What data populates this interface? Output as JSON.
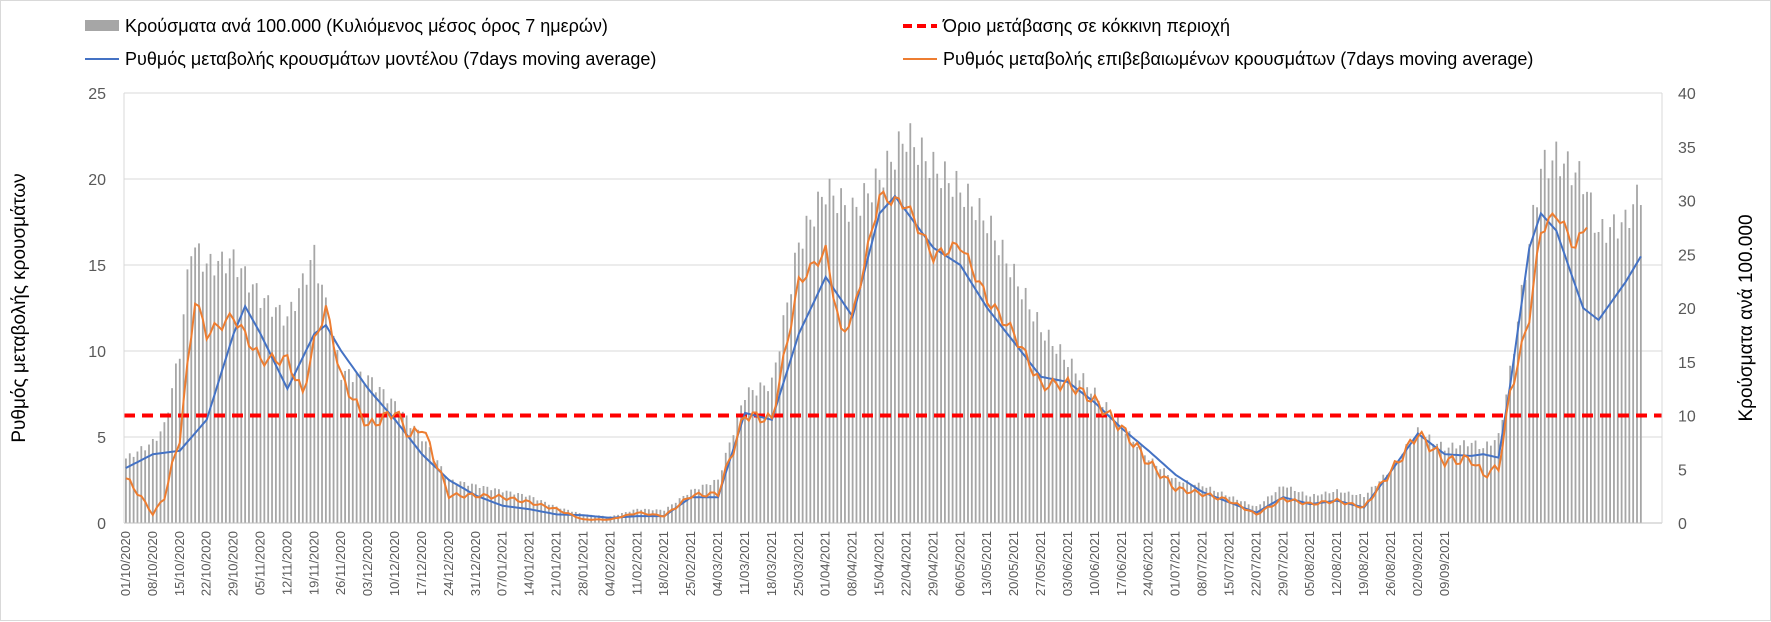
{
  "chart_data": {
    "type": "bar+line",
    "title": "",
    "left_axis": {
      "label": "Ρυθμός μεταβολής κρουσμάτων",
      "min": 0,
      "max": 25,
      "ticks": [
        "0",
        "5",
        "10",
        "15",
        "20",
        "25"
      ]
    },
    "right_axis": {
      "label": "Κρούσματα ανά 100.000",
      "min": 0,
      "max": 40,
      "ticks": [
        "0",
        "5",
        "10",
        "15",
        "20",
        "25",
        "30",
        "35",
        "40"
      ]
    },
    "x_tick_labels": [
      "01/10/2020",
      "08/10/2020",
      "15/10/2020",
      "22/10/2020",
      "29/10/2020",
      "05/11/2020",
      "12/11/2020",
      "19/11/2020",
      "26/11/2020",
      "03/12/2020",
      "10/12/2020",
      "17/12/2020",
      "24/12/2020",
      "31/12/2020",
      "07/01/2021",
      "14/01/2021",
      "21/01/2021",
      "28/01/2021",
      "04/02/2021",
      "11/02/2021",
      "18/02/2021",
      "25/02/2021",
      "04/03/2021",
      "11/03/2021",
      "18/03/2021",
      "25/03/2021",
      "01/04/2021",
      "08/04/2021",
      "15/04/2021",
      "22/04/2021",
      "29/04/2021",
      "06/05/2021",
      "13/05/2021",
      "20/05/2021",
      "27/05/2021",
      "03/06/2021",
      "10/06/2021",
      "17/06/2021",
      "24/06/2021",
      "01/07/2021",
      "08/07/2021",
      "15/07/2021",
      "22/07/2021",
      "29/07/2021",
      "05/08/2021",
      "12/08/2021",
      "19/08/2021",
      "26/08/2021",
      "02/09/2021",
      "09/09/2021"
    ],
    "legend": [
      {
        "label": "Κρούσματα ανά 100.000 (Κυλιόμενος μέσος όρος 7 ημερών)",
        "kind": "bar",
        "color": "#a6a6a6"
      },
      {
        "label": "Όριο μετάβασης σε κόκκινη περιοχή",
        "kind": "dashed",
        "color": "#ff0000"
      },
      {
        "label": "Ρυθμός μεταβολής κρουσμάτων μοντέλου (7days moving average)",
        "kind": "line",
        "color": "#4472c4"
      },
      {
        "label": "Ρυθμός μεταβολής επιβεβαιωμένων κρουσμάτων (7days moving average)",
        "kind": "line",
        "color": "#ed7d31"
      }
    ],
    "threshold": {
      "axis": "left",
      "value": 6.25
    },
    "series": [
      {
        "name": "Κρούσματα ανά 100.000 (Κυλιόμενος μέσος όρος 7 ημερών)",
        "kind": "bar",
        "axis": "right",
        "color": "#a6a6a6",
        "keyframes": [
          [
            0,
            6
          ],
          [
            7,
            7.5
          ],
          [
            10,
            9
          ],
          [
            14,
            16
          ],
          [
            17,
            26
          ],
          [
            21,
            24
          ],
          [
            28,
            24.5
          ],
          [
            35,
            21
          ],
          [
            42,
            19
          ],
          [
            49,
            25
          ],
          [
            56,
            14
          ],
          [
            63,
            13.5
          ],
          [
            70,
            11
          ],
          [
            77,
            8
          ],
          [
            84,
            4
          ],
          [
            91,
            3.5
          ],
          [
            98,
            3
          ],
          [
            105,
            2.5
          ],
          [
            112,
            1.5
          ],
          [
            119,
            0.8
          ],
          [
            126,
            0.6
          ],
          [
            133,
            1.3
          ],
          [
            140,
            1.2
          ],
          [
            147,
            3
          ],
          [
            154,
            4
          ],
          [
            161,
            12
          ],
          [
            168,
            13
          ],
          [
            175,
            26
          ],
          [
            182,
            31
          ],
          [
            189,
            29
          ],
          [
            196,
            32
          ],
          [
            203,
            36
          ],
          [
            210,
            33
          ],
          [
            217,
            31
          ],
          [
            224,
            28
          ],
          [
            231,
            23
          ],
          [
            238,
            18
          ],
          [
            245,
            15
          ],
          [
            252,
            12
          ],
          [
            259,
            9
          ],
          [
            266,
            6
          ],
          [
            273,
            4
          ],
          [
            280,
            3.5
          ],
          [
            287,
            2.5
          ],
          [
            294,
            1.5
          ],
          [
            301,
            3.5
          ],
          [
            308,
            2.5
          ],
          [
            315,
            3
          ],
          [
            322,
            2.5
          ],
          [
            329,
            5
          ],
          [
            336,
            8.5
          ],
          [
            343,
            7
          ],
          [
            350,
            7.5
          ],
          [
            353,
            7
          ],
          [
            357,
            8
          ],
          [
            360,
            14
          ],
          [
            365,
            26
          ],
          [
            368,
            33
          ],
          [
            372,
            34
          ],
          [
            379,
            32
          ],
          [
            383,
            27
          ],
          [
            390,
            28
          ],
          [
            394,
            31
          ]
        ]
      },
      {
        "name": "Ρυθμός μεταβολής κρουσμάτων μοντέλου (7days moving average)",
        "kind": "line",
        "axis": "left",
        "color": "#4472c4",
        "keyframes": [
          [
            0,
            3.2
          ],
          [
            7,
            4
          ],
          [
            14,
            4.2
          ],
          [
            21,
            6
          ],
          [
            28,
            11
          ],
          [
            31,
            12.6
          ],
          [
            35,
            11
          ],
          [
            42,
            7.8
          ],
          [
            49,
            11
          ],
          [
            52,
            11.5
          ],
          [
            56,
            10
          ],
          [
            63,
            7.8
          ],
          [
            70,
            6
          ],
          [
            77,
            4
          ],
          [
            84,
            2.5
          ],
          [
            91,
            1.6
          ],
          [
            98,
            1
          ],
          [
            105,
            0.8
          ],
          [
            112,
            0.5
          ],
          [
            119,
            0.45
          ],
          [
            126,
            0.3
          ],
          [
            133,
            0.4
          ],
          [
            140,
            0.4
          ],
          [
            147,
            1.5
          ],
          [
            154,
            1.5
          ],
          [
            161,
            6.4
          ],
          [
            168,
            6
          ],
          [
            175,
            11
          ],
          [
            182,
            14.3
          ],
          [
            189,
            12
          ],
          [
            196,
            18
          ],
          [
            200,
            19
          ],
          [
            210,
            16
          ],
          [
            217,
            15
          ],
          [
            224,
            12.5
          ],
          [
            231,
            10.5
          ],
          [
            238,
            8.5
          ],
          [
            245,
            8.2
          ],
          [
            252,
            7
          ],
          [
            259,
            5.5
          ],
          [
            266,
            4.2
          ],
          [
            273,
            2.8
          ],
          [
            280,
            1.8
          ],
          [
            287,
            1.2
          ],
          [
            294,
            0.6
          ],
          [
            301,
            1.5
          ],
          [
            308,
            1.1
          ],
          [
            315,
            1.3
          ],
          [
            322,
            0.9
          ],
          [
            329,
            3
          ],
          [
            336,
            5.2
          ],
          [
            343,
            4
          ],
          [
            350,
            3.9
          ],
          [
            353,
            4
          ],
          [
            357,
            3.8
          ],
          [
            360,
            8
          ],
          [
            365,
            16
          ],
          [
            368,
            18
          ],
          [
            372,
            17
          ],
          [
            379,
            12.5
          ],
          [
            383,
            11.8
          ],
          [
            390,
            14
          ],
          [
            394,
            15.5
          ]
        ]
      },
      {
        "name": "Ρυθμός μεταβολής επιβεβαιωμένων κρουσμάτων (7days moving average)",
        "kind": "line",
        "axis": "left",
        "color": "#ed7d31",
        "keyframes": [
          [
            0,
            2.6
          ],
          [
            4,
            1.5
          ],
          [
            7,
            0.5
          ],
          [
            10,
            1.5
          ],
          [
            14,
            5
          ],
          [
            18,
            13
          ],
          [
            21,
            11
          ],
          [
            28,
            12
          ],
          [
            35,
            9.5
          ],
          [
            42,
            9.5
          ],
          [
            46,
            7.5
          ],
          [
            49,
            10.5
          ],
          [
            52,
            12.5
          ],
          [
            56,
            8.5
          ],
          [
            63,
            5.6
          ],
          [
            70,
            6.5
          ],
          [
            74,
            5
          ],
          [
            77,
            5.6
          ],
          [
            84,
            1.6
          ],
          [
            91,
            1.6
          ],
          [
            98,
            1.5
          ],
          [
            105,
            1.2
          ],
          [
            112,
            0.8
          ],
          [
            119,
            0.2
          ],
          [
            126,
            0.2
          ],
          [
            133,
            0.6
          ],
          [
            140,
            0.4
          ],
          [
            147,
            1.6
          ],
          [
            154,
            1.7
          ],
          [
            161,
            6.3
          ],
          [
            168,
            6
          ],
          [
            175,
            14
          ],
          [
            182,
            15.8
          ],
          [
            186,
            11
          ],
          [
            189,
            12
          ],
          [
            196,
            19
          ],
          [
            203,
            18.5
          ],
          [
            210,
            15.5
          ],
          [
            217,
            16.2
          ],
          [
            224,
            13
          ],
          [
            231,
            11
          ],
          [
            238,
            8
          ],
          [
            245,
            8.1
          ],
          [
            252,
            7.1
          ],
          [
            259,
            5.5
          ],
          [
            266,
            3.5
          ],
          [
            273,
            2
          ],
          [
            280,
            1.7
          ],
          [
            287,
            1.3
          ],
          [
            294,
            0.5
          ],
          [
            301,
            1.4
          ],
          [
            308,
            1.1
          ],
          [
            315,
            1.3
          ],
          [
            322,
            0.9
          ],
          [
            329,
            3
          ],
          [
            336,
            5.2
          ],
          [
            343,
            3.6
          ],
          [
            350,
            3.7
          ],
          [
            353,
            2.8
          ],
          [
            357,
            3.2
          ],
          [
            360,
            7.5
          ],
          [
            365,
            12
          ],
          [
            368,
            17
          ],
          [
            372,
            18
          ],
          [
            377,
            16
          ],
          [
            380,
            17.5
          ]
        ]
      }
    ]
  }
}
